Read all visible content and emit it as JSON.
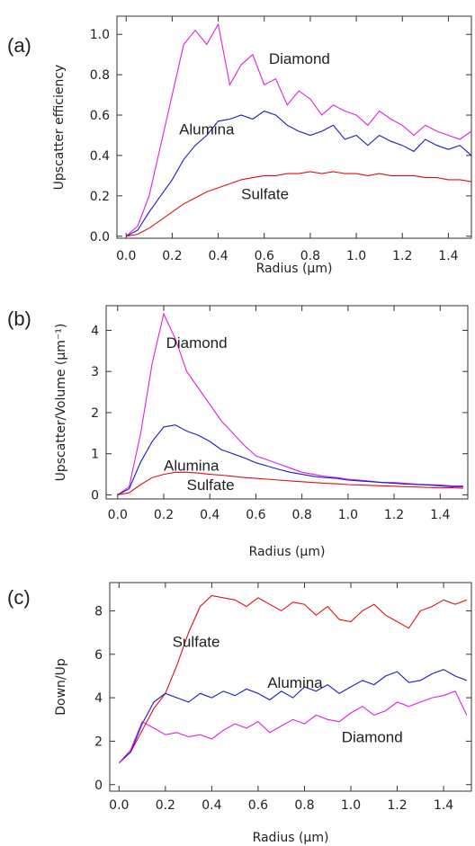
{
  "chart_data": [
    {
      "type": "line",
      "panel_label": "(a)",
      "xlabel": "Radius (μm)",
      "ylabel": "Upscatter efficiency",
      "x": [
        0,
        0.05,
        0.1,
        0.15,
        0.2,
        0.25,
        0.3,
        0.35,
        0.4,
        0.45,
        0.5,
        0.55,
        0.6,
        0.65,
        0.7,
        0.75,
        0.8,
        0.85,
        0.9,
        0.95,
        1.0,
        1.05,
        1.1,
        1.15,
        1.2,
        1.25,
        1.3,
        1.35,
        1.4,
        1.45,
        1.5
      ],
      "xlim": [
        -0.04,
        1.5
      ],
      "ylim": [
        -0.01,
        1.09
      ],
      "xticks": [
        {
          "value": 0,
          "label": "0.0"
        },
        0.2,
        0.4,
        0.6,
        0.8,
        {
          "value": 1,
          "label": "1.0"
        },
        1.2,
        1.4
      ],
      "yticks": [
        {
          "value": 0,
          "label": "0.0"
        },
        0.2,
        0.4,
        0.6,
        0.8,
        {
          "value": 1,
          "label": "1.0"
        }
      ],
      "series": [
        {
          "name": "Diamond",
          "color": "#dd22dd",
          "values": [
            0,
            0.05,
            0.2,
            0.45,
            0.7,
            0.95,
            1.02,
            0.95,
            1.05,
            0.75,
            0.85,
            0.9,
            0.75,
            0.78,
            0.65,
            0.72,
            0.68,
            0.6,
            0.65,
            0.62,
            0.6,
            0.55,
            0.62,
            0.58,
            0.55,
            0.5,
            0.55,
            0.52,
            0.5,
            0.48,
            0.52
          ]
        },
        {
          "name": "Alumina",
          "color": "#1a1acc",
          "values": [
            0,
            0.03,
            0.12,
            0.2,
            0.28,
            0.38,
            0.45,
            0.5,
            0.57,
            0.58,
            0.6,
            0.58,
            0.62,
            0.6,
            0.55,
            0.52,
            0.5,
            0.52,
            0.55,
            0.48,
            0.5,
            0.45,
            0.5,
            0.47,
            0.45,
            0.42,
            0.48,
            0.45,
            0.43,
            0.45,
            0.4
          ]
        },
        {
          "name": "Sulfate",
          "color": "#dd1111",
          "values": [
            0,
            0.01,
            0.04,
            0.08,
            0.12,
            0.16,
            0.19,
            0.22,
            0.24,
            0.26,
            0.28,
            0.29,
            0.3,
            0.3,
            0.31,
            0.31,
            0.32,
            0.31,
            0.32,
            0.31,
            0.31,
            0.3,
            0.31,
            0.3,
            0.3,
            0.3,
            0.29,
            0.29,
            0.28,
            0.28,
            0.27
          ]
        }
      ]
    },
    {
      "type": "line",
      "panel_label": "(b)",
      "xlabel": "Radius (μm)",
      "ylabel": "Upscatter/Volume (μm⁻¹)",
      "x": [
        0,
        0.05,
        0.1,
        0.15,
        0.2,
        0.25,
        0.3,
        0.35,
        0.4,
        0.45,
        0.5,
        0.55,
        0.6,
        0.65,
        0.7,
        0.75,
        0.8,
        0.85,
        0.9,
        0.95,
        1.0,
        1.05,
        1.1,
        1.15,
        1.2,
        1.25,
        1.3,
        1.35,
        1.4,
        1.45,
        1.5
      ],
      "xlim": [
        -0.05,
        1.52
      ],
      "ylim": [
        -0.1,
        4.6
      ],
      "xticks": [
        {
          "value": 0,
          "label": "0.0"
        },
        0.2,
        0.4,
        0.6,
        0.8,
        {
          "value": 1,
          "label": "1.0"
        },
        1.2,
        1.4
      ],
      "yticks": [
        0,
        1,
        2,
        3,
        4
      ],
      "series": [
        {
          "name": "Diamond",
          "color": "#dd22dd",
          "values": [
            0,
            0.2,
            1.5,
            3.2,
            4.4,
            3.8,
            3.0,
            2.6,
            2.2,
            1.8,
            1.5,
            1.2,
            0.95,
            0.85,
            0.75,
            0.65,
            0.55,
            0.5,
            0.45,
            0.42,
            0.38,
            0.36,
            0.33,
            0.3,
            0.3,
            0.28,
            0.26,
            0.25,
            0.24,
            0.22,
            0.22
          ]
        },
        {
          "name": "Alumina",
          "color": "#1a1acc",
          "values": [
            0,
            0.15,
            0.8,
            1.3,
            1.65,
            1.7,
            1.55,
            1.45,
            1.3,
            1.1,
            1.0,
            0.9,
            0.78,
            0.7,
            0.62,
            0.55,
            0.5,
            0.45,
            0.42,
            0.4,
            0.36,
            0.34,
            0.32,
            0.3,
            0.28,
            0.26,
            0.25,
            0.24,
            0.22,
            0.2,
            0.2
          ]
        },
        {
          "name": "Sulfate",
          "color": "#dd1111",
          "values": [
            0,
            0.05,
            0.25,
            0.42,
            0.5,
            0.55,
            0.55,
            0.53,
            0.5,
            0.48,
            0.45,
            0.42,
            0.4,
            0.38,
            0.36,
            0.34,
            0.32,
            0.3,
            0.28,
            0.27,
            0.25,
            0.24,
            0.23,
            0.22,
            0.21,
            0.2,
            0.19,
            0.18,
            0.17,
            0.17,
            0.16
          ]
        }
      ]
    },
    {
      "type": "line",
      "panel_label": "(c)",
      "xlabel": "Radius (μm)",
      "ylabel": "Down/Up",
      "x": [
        0,
        0.05,
        0.1,
        0.15,
        0.2,
        0.25,
        0.3,
        0.35,
        0.4,
        0.45,
        0.5,
        0.55,
        0.6,
        0.65,
        0.7,
        0.75,
        0.8,
        0.85,
        0.9,
        0.95,
        1.0,
        1.05,
        1.1,
        1.15,
        1.2,
        1.25,
        1.3,
        1.35,
        1.4,
        1.45,
        1.5
      ],
      "xlim": [
        -0.04,
        1.52
      ],
      "ylim": [
        -0.3,
        9.3
      ],
      "xticks": [
        {
          "value": 0,
          "label": "0.0"
        },
        0.2,
        0.4,
        0.6,
        0.8,
        {
          "value": 1,
          "label": "1.0"
        },
        1.2,
        1.4
      ],
      "yticks": [
        0,
        2,
        4,
        6,
        8
      ],
      "series": [
        {
          "name": "Sulfate",
          "color": "#dd1111",
          "values": [
            1,
            1.5,
            2.5,
            3.5,
            4.2,
            5.5,
            7.0,
            8.2,
            8.7,
            8.6,
            8.5,
            8.2,
            8.6,
            8.3,
            8.0,
            8.4,
            8.3,
            7.8,
            8.2,
            7.6,
            7.5,
            8.0,
            8.3,
            7.8,
            7.5,
            7.2,
            8.0,
            8.2,
            8.5,
            8.3,
            8.5
          ]
        },
        {
          "name": "Alumina",
          "color": "#1a1acc",
          "values": [
            1,
            1.5,
            2.8,
            3.8,
            4.2,
            4.0,
            3.8,
            4.2,
            4.0,
            4.3,
            4.1,
            4.4,
            4.2,
            3.9,
            4.3,
            4.0,
            4.5,
            4.3,
            4.6,
            4.2,
            4.5,
            4.8,
            4.6,
            5.0,
            5.2,
            4.7,
            4.8,
            5.1,
            5.3,
            5.0,
            4.8
          ]
        },
        {
          "name": "Diamond",
          "color": "#dd22dd",
          "values": [
            1,
            1.6,
            2.9,
            2.6,
            2.3,
            2.4,
            2.2,
            2.3,
            2.1,
            2.5,
            2.8,
            2.6,
            2.9,
            2.4,
            2.7,
            3.0,
            2.8,
            3.2,
            3.0,
            2.9,
            3.3,
            3.6,
            3.2,
            3.4,
            3.8,
            3.6,
            3.8,
            4.0,
            4.1,
            4.3,
            3.2
          ]
        }
      ]
    }
  ]
}
